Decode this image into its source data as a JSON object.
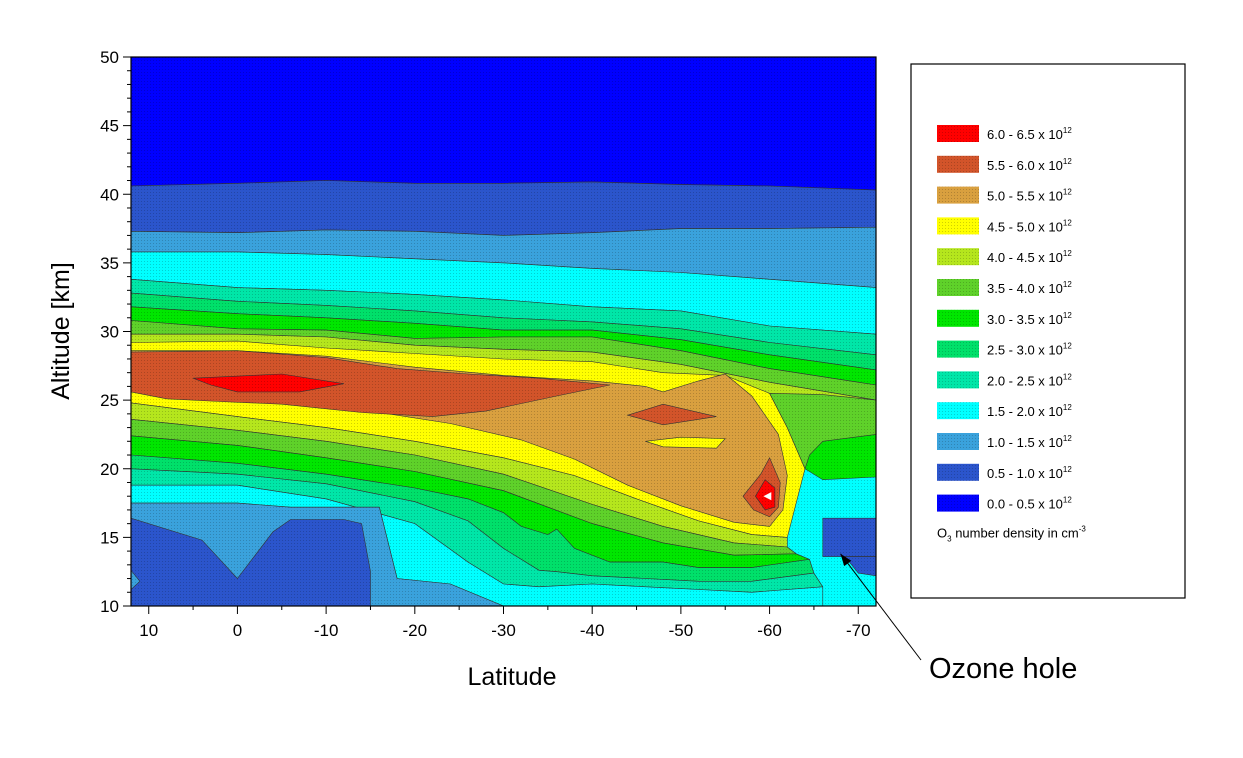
{
  "chart_data": {
    "type": "heatmap",
    "subtype": "filled-contour",
    "xlabel": "Latitude",
    "ylabel": "Altitude [km]",
    "xlim": [
      12,
      -72
    ],
    "ylim": [
      10,
      50
    ],
    "x_ticks": [
      10,
      0,
      -10,
      -20,
      -30,
      -40,
      -50,
      -60,
      -70
    ],
    "y_ticks": [
      10,
      15,
      20,
      25,
      30,
      35,
      40,
      45,
      50
    ],
    "grid": false,
    "legend_position": "right",
    "legend": {
      "items": [
        {
          "range": [
            6.0,
            6.5
          ],
          "label": "6.0 - 6.5 x 10",
          "exp": "12",
          "color": "#ff0000"
        },
        {
          "range": [
            5.5,
            6.0
          ],
          "label": "5.5 - 6.0 x 10",
          "exp": "12",
          "color": "#d2542a"
        },
        {
          "range": [
            5.0,
            5.5
          ],
          "label": "5.0 - 5.5 x 10",
          "exp": "12",
          "color": "#d9a03f"
        },
        {
          "range": [
            4.5,
            5.0
          ],
          "label": "4.5 - 5.0 x 10",
          "exp": "12",
          "color": "#ffff00"
        },
        {
          "range": [
            4.0,
            4.5
          ],
          "label": "4.0 - 4.5 x 10",
          "exp": "12",
          "color": "#b5e61d"
        },
        {
          "range": [
            3.5,
            4.0
          ],
          "label": "3.5 - 4.0 x 10",
          "exp": "12",
          "color": "#5fd12a"
        },
        {
          "range": [
            3.0,
            3.5
          ],
          "label": "3.0 - 3.5 x 10",
          "exp": "12",
          "color": "#00e600"
        },
        {
          "range": [
            2.5,
            3.0
          ],
          "label": "2.5 - 3.0 x 10",
          "exp": "12",
          "color": "#00e06a"
        },
        {
          "range": [
            2.0,
            2.5
          ],
          "label": "2.0 - 2.5 x 10",
          "exp": "12",
          "color": "#00e6a8"
        },
        {
          "range": [
            1.5,
            2.0
          ],
          "label": "1.5 - 2.0 x 10",
          "exp": "12",
          "color": "#00ffff"
        },
        {
          "range": [
            1.0,
            1.5
          ],
          "label": "1.0 - 1.5 x 10",
          "exp": "12",
          "color": "#3aa2dc"
        },
        {
          "range": [
            0.5,
            1.0
          ],
          "label": "0.5 - 1.0 x 10",
          "exp": "12",
          "color": "#2b55cc"
        },
        {
          "range": [
            0.0,
            0.5
          ],
          "label": "0.0 - 0.5 x 10",
          "exp": "12",
          "color": "#0000ff"
        }
      ],
      "unit_label_main": "O",
      "unit_label_sub": "3",
      "unit_label_rest": " number density in cm",
      "unit_label_sup": "-3"
    },
    "bands": [
      {
        "name": "upper",
        "color": "#0000ff",
        "top": [
          [
            12,
            50
          ],
          [
            -72,
            50
          ]
        ],
        "bottom": [
          [
            12,
            40.6
          ],
          [
            0,
            40.8
          ],
          [
            -10,
            41
          ],
          [
            -20,
            40.8
          ],
          [
            -30,
            40.8
          ],
          [
            -40,
            40.9
          ],
          [
            -50,
            40.7
          ],
          [
            -60,
            40.6
          ],
          [
            -72,
            40.3
          ]
        ]
      },
      {
        "name": "b10",
        "color": "#2b55cc",
        "top": [
          [
            12,
            40.6
          ],
          [
            0,
            40.8
          ],
          [
            -10,
            41
          ],
          [
            -20,
            40.8
          ],
          [
            -30,
            40.8
          ],
          [
            -40,
            40.9
          ],
          [
            -50,
            40.7
          ],
          [
            -60,
            40.6
          ],
          [
            -72,
            40.3
          ]
        ],
        "bottom": [
          [
            12,
            37.3
          ],
          [
            0,
            37.2
          ],
          [
            -10,
            37.4
          ],
          [
            -20,
            37.3
          ],
          [
            -30,
            37
          ],
          [
            -40,
            37.2
          ],
          [
            -50,
            37.5
          ],
          [
            -60,
            37.5
          ],
          [
            -72,
            37.6
          ]
        ]
      },
      {
        "name": "b15",
        "color": "#3aa2dc",
        "top": [
          [
            12,
            37.3
          ],
          [
            0,
            37.2
          ],
          [
            -10,
            37.4
          ],
          [
            -20,
            37.3
          ],
          [
            -30,
            37
          ],
          [
            -40,
            37.2
          ],
          [
            -50,
            37.5
          ],
          [
            -60,
            37.5
          ],
          [
            -72,
            37.6
          ]
        ],
        "bottom": [
          [
            12,
            35.8
          ],
          [
            0,
            35.8
          ],
          [
            -10,
            35.6
          ],
          [
            -20,
            35.3
          ],
          [
            -30,
            35
          ],
          [
            -40,
            34.6
          ],
          [
            -50,
            34.3
          ],
          [
            -60,
            33.8
          ],
          [
            -72,
            33.2
          ]
        ]
      },
      {
        "name": "b20",
        "color": "#00ffff",
        "top": [
          [
            12,
            35.8
          ],
          [
            0,
            35.8
          ],
          [
            -10,
            35.6
          ],
          [
            -20,
            35.3
          ],
          [
            -30,
            35
          ],
          [
            -40,
            34.6
          ],
          [
            -50,
            34.3
          ],
          [
            -60,
            33.8
          ],
          [
            -72,
            33.2
          ]
        ],
        "bottom": [
          [
            12,
            33.8
          ],
          [
            0,
            33.2
          ],
          [
            -10,
            33
          ],
          [
            -20,
            32.7
          ],
          [
            -30,
            32.3
          ],
          [
            -40,
            31.8
          ],
          [
            -50,
            31.5
          ],
          [
            -60,
            30.4
          ],
          [
            -72,
            29.8
          ]
        ]
      },
      {
        "name": "b25",
        "color": "#00e6a8",
        "top": [
          [
            12,
            33.8
          ],
          [
            0,
            33.2
          ],
          [
            -10,
            33
          ],
          [
            -20,
            32.7
          ],
          [
            -30,
            32.3
          ],
          [
            -40,
            31.8
          ],
          [
            -50,
            31.5
          ],
          [
            -60,
            30.4
          ],
          [
            -72,
            29.8
          ]
        ],
        "bottom": [
          [
            12,
            32.8
          ],
          [
            0,
            32.2
          ],
          [
            -10,
            31.9
          ],
          [
            -20,
            31.5
          ],
          [
            -30,
            31
          ],
          [
            -40,
            30.7
          ],
          [
            -50,
            30.2
          ],
          [
            -60,
            29.2
          ],
          [
            -72,
            28.3
          ]
        ]
      },
      {
        "name": "b30",
        "color": "#00e06a",
        "top": [
          [
            12,
            32.8
          ],
          [
            0,
            32.2
          ],
          [
            -10,
            31.9
          ],
          [
            -20,
            31.5
          ],
          [
            -30,
            31
          ],
          [
            -40,
            30.7
          ],
          [
            -50,
            30.2
          ],
          [
            -60,
            29.2
          ],
          [
            -72,
            28.3
          ]
        ],
        "bottom": [
          [
            12,
            31.8
          ],
          [
            0,
            31.3
          ],
          [
            -10,
            31
          ],
          [
            -20,
            30.6
          ],
          [
            -30,
            30.1
          ],
          [
            -40,
            30.1
          ],
          [
            -50,
            29.4
          ],
          [
            -60,
            28.3
          ],
          [
            -72,
            27.2
          ]
        ]
      },
      {
        "name": "b35",
        "color": "#00e600",
        "top": [
          [
            12,
            31.8
          ],
          [
            0,
            31.3
          ],
          [
            -10,
            31
          ],
          [
            -20,
            30.6
          ],
          [
            -30,
            30.1
          ],
          [
            -40,
            30.1
          ],
          [
            -50,
            29.4
          ],
          [
            -60,
            28.3
          ],
          [
            -72,
            27.2
          ]
        ],
        "bottom": [
          [
            12,
            30.8
          ],
          [
            0,
            30.2
          ],
          [
            -10,
            30.1
          ],
          [
            -20,
            29.5
          ],
          [
            -30,
            29.6
          ],
          [
            -40,
            29.6
          ],
          [
            -50,
            28.6
          ],
          [
            -60,
            27.3
          ],
          [
            -72,
            26.1
          ]
        ]
      },
      {
        "name": "b40",
        "color": "#5fd12a",
        "top": [
          [
            12,
            30.8
          ],
          [
            0,
            30.2
          ],
          [
            -10,
            30.1
          ],
          [
            -20,
            29.5
          ],
          [
            -30,
            29.6
          ],
          [
            -40,
            29.6
          ],
          [
            -50,
            28.6
          ],
          [
            -60,
            27.3
          ],
          [
            -72,
            26.1
          ]
        ],
        "bottom": [
          [
            12,
            29.8
          ],
          [
            0,
            29.8
          ],
          [
            -10,
            29.6
          ],
          [
            -20,
            29
          ],
          [
            -30,
            28.7
          ],
          [
            -40,
            28.5
          ],
          [
            -50,
            27.6
          ],
          [
            -60,
            26.3
          ],
          [
            -72,
            25
          ]
        ]
      },
      {
        "name": "b45",
        "color": "#b5e61d",
        "top": [
          [
            12,
            29.8
          ],
          [
            0,
            29.8
          ],
          [
            -10,
            29.6
          ],
          [
            -20,
            29
          ],
          [
            -30,
            28.7
          ],
          [
            -40,
            28.5
          ],
          [
            -50,
            27.6
          ],
          [
            -60,
            26.3
          ],
          [
            -72,
            25
          ]
        ]
      }
    ],
    "annotations": [
      {
        "text": "Ozone hole",
        "target": {
          "x": -68,
          "y": 13.8
        }
      }
    ]
  }
}
